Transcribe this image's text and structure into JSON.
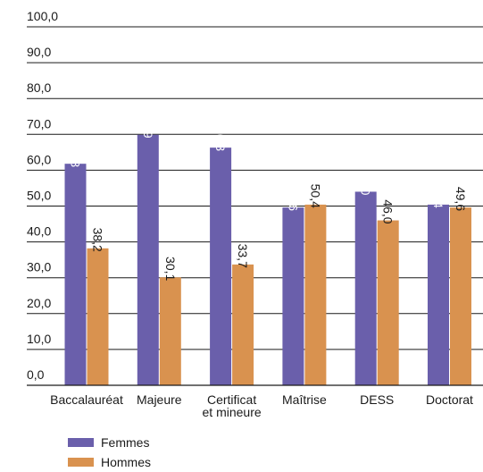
{
  "chart_data": {
    "type": "bar",
    "categories": [
      "Baccalauréat",
      "Majeure",
      "Certificat et mineure",
      "Maîtrise",
      "DESS",
      "Doctorat"
    ],
    "category_lines": [
      [
        "Baccalauréat"
      ],
      [
        "Majeure"
      ],
      [
        "Certificat",
        "et mineure"
      ],
      [
        "Maîtrise"
      ],
      [
        "DESS"
      ],
      [
        "Doctorat"
      ]
    ],
    "series": [
      {
        "name": "Femmes",
        "color": "#6a5fab",
        "values": [
          61.8,
          69.9,
          66.3,
          49.6,
          54.0,
          50.4
        ],
        "labels": [
          "61,8",
          "69,9",
          "66,3",
          "49,6",
          "54,0",
          "50,4"
        ]
      },
      {
        "name": "Hommes",
        "color": "#d9924f",
        "values": [
          38.2,
          30.1,
          33.7,
          50.4,
          46.0,
          49.6
        ],
        "labels": [
          "38,2",
          "30,1",
          "33,7",
          "50,4",
          "46,0",
          "49,6"
        ]
      }
    ],
    "y_ticks": [
      0,
      10,
      20,
      30,
      40,
      50,
      60,
      70,
      80,
      90,
      100
    ],
    "y_tick_labels": [
      "0,0",
      "10,0",
      "20,0",
      "30,0",
      "40,0",
      "50,0",
      "60,0",
      "70,0",
      "80,0",
      "90,0",
      "100,0"
    ],
    "ylim": [
      0,
      100
    ],
    "grid": true,
    "legend_position": "bottom-left",
    "title": "",
    "xlabel": "",
    "ylabel": ""
  }
}
